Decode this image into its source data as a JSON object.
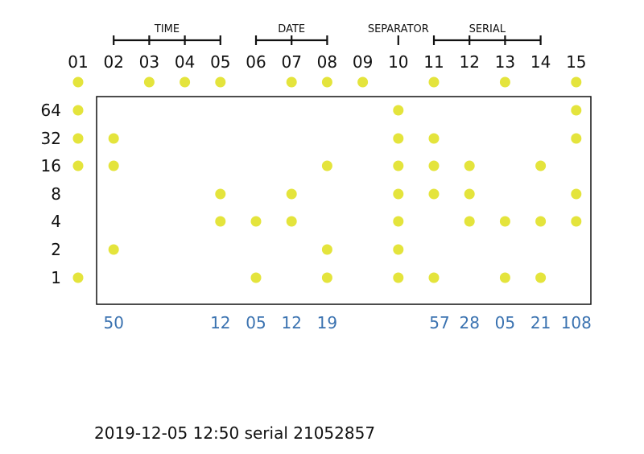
{
  "colors": {
    "dot": "#e4e43c",
    "value_text": "#3a72b0",
    "line": "#111111"
  },
  "groups": [
    {
      "label": "TIME",
      "start_col": 2,
      "end_col": 5
    },
    {
      "label": "DATE",
      "start_col": 6,
      "end_col": 8
    },
    {
      "label": "SEPARATOR",
      "start_col": 10,
      "end_col": 10
    },
    {
      "label": "SERIAL",
      "start_col": 11,
      "end_col": 14
    }
  ],
  "columns": [
    "01",
    "02",
    "03",
    "04",
    "05",
    "06",
    "07",
    "08",
    "09",
    "10",
    "11",
    "12",
    "13",
    "14",
    "15"
  ],
  "rows": [
    "64",
    "32",
    "16",
    "8",
    "4",
    "2",
    "1"
  ],
  "parity_row": [
    1,
    0,
    1,
    1,
    1,
    0,
    1,
    1,
    1,
    0,
    1,
    0,
    1,
    0,
    1
  ],
  "bits": [
    {
      "col": 1,
      "rows": [
        "64",
        "32",
        "16",
        "1"
      ]
    },
    {
      "col": 2,
      "rows": [
        "32",
        "16",
        "2"
      ]
    },
    {
      "col": 5,
      "rows": [
        "8",
        "4"
      ]
    },
    {
      "col": 6,
      "rows": [
        "4",
        "1"
      ]
    },
    {
      "col": 7,
      "rows": [
        "8",
        "4"
      ]
    },
    {
      "col": 8,
      "rows": [
        "16",
        "2",
        "1"
      ]
    },
    {
      "col": 10,
      "rows": [
        "64",
        "32",
        "16",
        "8",
        "4",
        "2",
        "1"
      ]
    },
    {
      "col": 11,
      "rows": [
        "32",
        "16",
        "8",
        "1"
      ]
    },
    {
      "col": 12,
      "rows": [
        "16",
        "8",
        "4"
      ]
    },
    {
      "col": 13,
      "rows": [
        "4",
        "1"
      ]
    },
    {
      "col": 14,
      "rows": [
        "16",
        "4",
        "1"
      ]
    },
    {
      "col": 15,
      "rows": [
        "64",
        "32",
        "8",
        "4"
      ]
    }
  ],
  "values": [
    {
      "col": 2,
      "text": "50"
    },
    {
      "col": 5,
      "text": "12"
    },
    {
      "col": 6,
      "text": "05"
    },
    {
      "col": 7,
      "text": "12"
    },
    {
      "col": 8,
      "text": "19"
    },
    {
      "col": 11,
      "text": "57"
    },
    {
      "col": 12,
      "text": "28"
    },
    {
      "col": 13,
      "text": "05"
    },
    {
      "col": 14,
      "text": "21"
    },
    {
      "col": 15,
      "text": "108"
    }
  ],
  "caption": "2019-12-05 12:50 serial 21052857"
}
